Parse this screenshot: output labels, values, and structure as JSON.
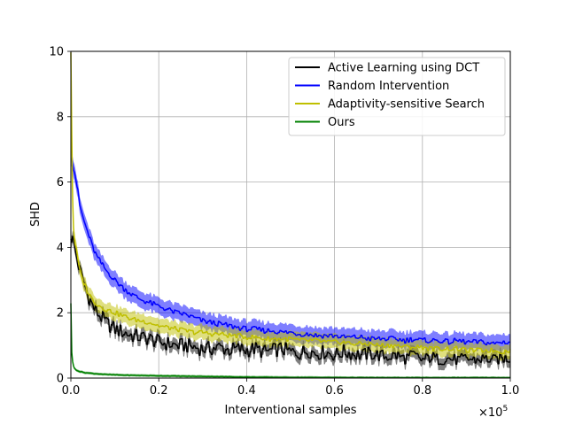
{
  "chart_data": {
    "type": "line",
    "xlabel": "Interventional samples",
    "ylabel": "SHD",
    "x_scale_note": "×10",
    "x_scale_exp": "5",
    "xlim": [
      0,
      1.0
    ],
    "ylim": [
      0,
      10
    ],
    "xticks": [
      0.0,
      0.2,
      0.4,
      0.6,
      0.8,
      1.0
    ],
    "xtick_labels": [
      "0.0",
      "0.2",
      "0.4",
      "0.6",
      "0.8",
      "1.0"
    ],
    "yticks": [
      0,
      2,
      4,
      6,
      8,
      10
    ],
    "ytick_labels": [
      "0",
      "2",
      "4",
      "6",
      "8",
      "10"
    ],
    "grid": true,
    "legend_position": "top-right",
    "series": [
      {
        "name": "Active Learning using DCT",
        "color": "#000000",
        "band": 0.18,
        "x": [
          0.0,
          0.002,
          0.005,
          0.01,
          0.015,
          0.02,
          0.03,
          0.04,
          0.05,
          0.06,
          0.08,
          0.1,
          0.12,
          0.14,
          0.16,
          0.18,
          0.2,
          0.22,
          0.24,
          0.26,
          0.28,
          0.3,
          0.32,
          0.34,
          0.36,
          0.38,
          0.4,
          0.42,
          0.44,
          0.46,
          0.48,
          0.5,
          0.52,
          0.54,
          0.56,
          0.58,
          0.6,
          0.62,
          0.64,
          0.66,
          0.68,
          0.7,
          0.72,
          0.74,
          0.76,
          0.78,
          0.8,
          0.82,
          0.84,
          0.86,
          0.88,
          0.9,
          0.92,
          0.94,
          0.96,
          0.98,
          1.0
        ],
        "y": [
          4.4,
          4.3,
          4.2,
          3.9,
          3.6,
          3.3,
          2.9,
          2.5,
          2.2,
          2.0,
          1.7,
          1.5,
          1.4,
          1.3,
          1.25,
          1.2,
          1.1,
          1.05,
          1.0,
          1.0,
          0.95,
          0.9,
          0.9,
          0.95,
          0.85,
          0.9,
          0.85,
          0.9,
          0.8,
          0.85,
          0.9,
          0.8,
          0.75,
          0.85,
          0.75,
          0.8,
          0.7,
          0.8,
          0.75,
          0.7,
          0.75,
          0.7,
          0.65,
          0.7,
          0.6,
          0.7,
          0.55,
          0.65,
          0.55,
          0.6,
          0.55,
          0.6,
          0.55,
          0.6,
          0.55,
          0.6,
          0.6
        ]
      },
      {
        "name": "Random Intervention",
        "color": "#0000ff",
        "band": 0.25,
        "x": [
          0.0,
          0.002,
          0.005,
          0.01,
          0.015,
          0.02,
          0.03,
          0.04,
          0.05,
          0.06,
          0.08,
          0.1,
          0.12,
          0.14,
          0.16,
          0.18,
          0.2,
          0.22,
          0.24,
          0.26,
          0.28,
          0.3,
          0.32,
          0.34,
          0.36,
          0.38,
          0.4,
          0.42,
          0.44,
          0.46,
          0.48,
          0.5,
          0.52,
          0.54,
          0.56,
          0.58,
          0.6,
          0.62,
          0.64,
          0.66,
          0.68,
          0.7,
          0.72,
          0.74,
          0.76,
          0.78,
          0.8,
          0.82,
          0.84,
          0.86,
          0.88,
          0.9,
          0.92,
          0.94,
          0.96,
          0.98,
          1.0
        ],
        "y": [
          6.8,
          6.8,
          6.5,
          6.2,
          5.8,
          5.3,
          4.8,
          4.4,
          4.0,
          3.7,
          3.3,
          3.0,
          2.75,
          2.55,
          2.4,
          2.3,
          2.2,
          2.1,
          2.0,
          1.95,
          1.85,
          1.75,
          1.7,
          1.65,
          1.6,
          1.55,
          1.5,
          1.5,
          1.45,
          1.45,
          1.4,
          1.4,
          1.35,
          1.35,
          1.3,
          1.3,
          1.3,
          1.25,
          1.25,
          1.25,
          1.2,
          1.2,
          1.2,
          1.2,
          1.15,
          1.2,
          1.15,
          1.15,
          1.15,
          1.1,
          1.15,
          1.1,
          1.1,
          1.1,
          1.05,
          1.1,
          1.1
        ]
      },
      {
        "name": "Adaptivity-sensitive Search",
        "color": "#bfbf00",
        "band": 0.22,
        "x": [
          0.0,
          0.001,
          0.002,
          0.004,
          0.006,
          0.008,
          0.01,
          0.015,
          0.02,
          0.03,
          0.04,
          0.05,
          0.06,
          0.08,
          0.1,
          0.12,
          0.14,
          0.16,
          0.18,
          0.2,
          0.22,
          0.24,
          0.26,
          0.28,
          0.3,
          0.32,
          0.34,
          0.36,
          0.38,
          0.4,
          0.42,
          0.44,
          0.46,
          0.48,
          0.5,
          0.52,
          0.54,
          0.56,
          0.58,
          0.6,
          0.62,
          0.64,
          0.66,
          0.68,
          0.7,
          0.72,
          0.74,
          0.76,
          0.78,
          0.8,
          0.82,
          0.84,
          0.86,
          0.88,
          0.9,
          0.92,
          0.94,
          0.96,
          0.98,
          1.0
        ],
        "y": [
          10.0,
          9.6,
          7.5,
          5.5,
          4.6,
          4.3,
          4.1,
          3.7,
          3.3,
          2.9,
          2.6,
          2.4,
          2.25,
          2.1,
          2.0,
          1.9,
          1.8,
          1.75,
          1.7,
          1.6,
          1.55,
          1.5,
          1.45,
          1.4,
          1.4,
          1.35,
          1.35,
          1.3,
          1.3,
          1.25,
          1.25,
          1.2,
          1.2,
          1.2,
          1.2,
          1.15,
          1.15,
          1.15,
          1.1,
          1.1,
          1.1,
          1.05,
          1.05,
          1.05,
          1.0,
          1.0,
          1.0,
          0.95,
          0.95,
          0.95,
          0.9,
          0.9,
          0.9,
          0.9,
          0.85,
          0.85,
          0.85,
          0.85,
          0.8,
          0.85
        ]
      },
      {
        "name": "Ours",
        "color": "#008000",
        "band": 0.04,
        "x": [
          0.0,
          0.001,
          0.002,
          0.003,
          0.005,
          0.008,
          0.012,
          0.02,
          0.03,
          0.05,
          0.08,
          0.12,
          0.16,
          0.2,
          0.25,
          0.3,
          0.35,
          0.4,
          0.5,
          0.6,
          0.7,
          0.8,
          0.9,
          1.0
        ],
        "y": [
          2.3,
          1.3,
          0.8,
          0.6,
          0.4,
          0.3,
          0.25,
          0.2,
          0.17,
          0.14,
          0.11,
          0.09,
          0.08,
          0.07,
          0.06,
          0.05,
          0.04,
          0.03,
          0.02,
          0.015,
          0.01,
          0.01,
          0.01,
          0.01
        ]
      }
    ]
  }
}
